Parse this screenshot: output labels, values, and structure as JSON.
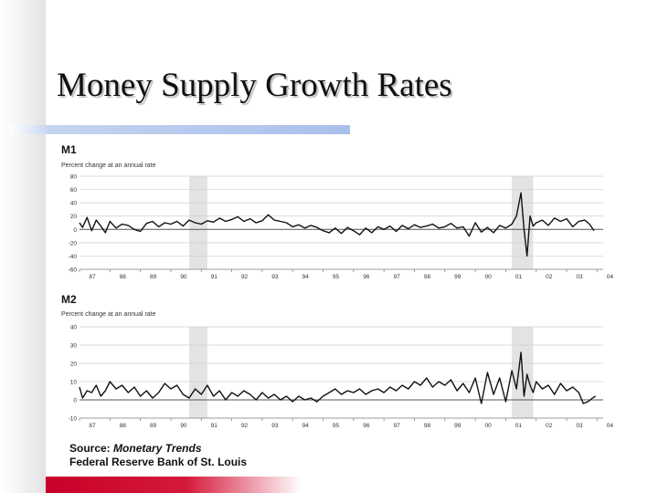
{
  "slide": {
    "title": "Money Supply Growth Rates",
    "source_label": "Source:",
    "source_publication": "Monetary Trends",
    "source_org": "Federal Reserve Bank of St. Louis"
  },
  "colors": {
    "bottom_bar": "#c8002a",
    "title_underline": "#a9bfec",
    "shading": "#e3e3e3",
    "line": "#111111"
  },
  "chart_data": [
    {
      "type": "line",
      "title": "M1",
      "subtitle": "Percent change at an annual rate",
      "ylim": [
        -60,
        80
      ],
      "y_ticks": [
        80,
        60,
        40,
        20,
        0,
        -20,
        -40,
        -60
      ],
      "x_ticks": [
        "87",
        "88",
        "89",
        "90",
        "91",
        "92",
        "93",
        "94",
        "95",
        "96",
        "97",
        "98",
        "99",
        "00",
        "01",
        "02",
        "03",
        "04"
      ],
      "xlim": [
        1987.0,
        2004.2
      ],
      "shaded_periods": [
        [
          1990.6,
          1991.2
        ],
        [
          2001.2,
          2001.9
        ]
      ],
      "series": [
        {
          "x": [
            1987.0,
            1987.1,
            1987.25,
            1987.4,
            1987.55,
            1987.7,
            1987.85,
            1988.0,
            1988.2,
            1988.4,
            1988.6,
            1988.8,
            1989.0,
            1989.2,
            1989.4,
            1989.6,
            1989.8,
            1990.0,
            1990.2,
            1990.4,
            1990.6,
            1990.8,
            1991.0,
            1991.2,
            1991.4,
            1991.6,
            1991.8,
            1992.0,
            1992.2,
            1992.4,
            1992.6,
            1992.8,
            1993.0,
            1993.2,
            1993.4,
            1993.6,
            1993.8,
            1994.0,
            1994.2,
            1994.4,
            1994.6,
            1994.8,
            1995.0,
            1995.2,
            1995.4,
            1995.6,
            1995.8,
            1996.0,
            1996.2,
            1996.4,
            1996.6,
            1996.8,
            1997.0,
            1997.2,
            1997.4,
            1997.6,
            1997.8,
            1998.0,
            1998.2,
            1998.4,
            1998.6,
            1998.8,
            1999.0,
            1999.2,
            1999.4,
            1999.6,
            1999.8,
            2000.0,
            2000.2,
            2000.4,
            2000.6,
            2000.8,
            2001.0,
            2001.2,
            2001.35,
            2001.5,
            2001.6,
            2001.7,
            2001.8,
            2001.9,
            2002.0,
            2002.2,
            2002.4,
            2002.6,
            2002.8,
            2003.0,
            2003.2,
            2003.4,
            2003.6,
            2003.75,
            2003.9
          ],
          "y": [
            10,
            3,
            18,
            -2,
            14,
            5,
            -5,
            12,
            2,
            8,
            6,
            0,
            -3,
            9,
            12,
            4,
            10,
            8,
            12,
            5,
            14,
            10,
            8,
            13,
            11,
            17,
            12,
            15,
            19,
            12,
            16,
            10,
            13,
            22,
            14,
            12,
            10,
            4,
            7,
            2,
            6,
            3,
            -2,
            -5,
            2,
            -6,
            3,
            -2,
            -8,
            2,
            -5,
            4,
            0,
            5,
            -3,
            6,
            1,
            7,
            3,
            5,
            8,
            2,
            4,
            9,
            2,
            4,
            -10,
            10,
            -4,
            3,
            -5,
            6,
            2,
            8,
            20,
            55,
            0,
            -40,
            20,
            5,
            10,
            14,
            6,
            17,
            12,
            16,
            4,
            12,
            14,
            8,
            -2
          ]
        }
      ]
    },
    {
      "type": "line",
      "title": "M2",
      "subtitle": "Percent change at an annual rate",
      "ylim": [
        -10,
        40
      ],
      "y_ticks": [
        40,
        30,
        20,
        10,
        0,
        -10
      ],
      "x_ticks": [
        "87",
        "88",
        "89",
        "90",
        "91",
        "92",
        "93",
        "94",
        "95",
        "96",
        "97",
        "98",
        "99",
        "00",
        "01",
        "02",
        "03",
        "04"
      ],
      "xlim": [
        1987.0,
        2004.2
      ],
      "shaded_periods": [
        [
          1990.6,
          1991.2
        ],
        [
          2001.2,
          2001.9
        ]
      ],
      "series": [
        {
          "x": [
            1987.0,
            1987.1,
            1987.25,
            1987.4,
            1987.55,
            1987.7,
            1987.85,
            1988.0,
            1988.2,
            1988.4,
            1988.6,
            1988.8,
            1989.0,
            1989.2,
            1989.4,
            1989.6,
            1989.8,
            1990.0,
            1990.2,
            1990.4,
            1990.6,
            1990.8,
            1991.0,
            1991.2,
            1991.4,
            1991.6,
            1991.8,
            1992.0,
            1992.2,
            1992.4,
            1992.6,
            1992.8,
            1993.0,
            1993.2,
            1993.4,
            1993.6,
            1993.8,
            1994.0,
            1994.2,
            1994.4,
            1994.6,
            1994.8,
            1995.0,
            1995.2,
            1995.4,
            1995.6,
            1995.8,
            1996.0,
            1996.2,
            1996.4,
            1996.6,
            1996.8,
            1997.0,
            1997.2,
            1997.4,
            1997.6,
            1997.8,
            1998.0,
            1998.2,
            1998.4,
            1998.6,
            1998.8,
            1999.0,
            1999.2,
            1999.4,
            1999.6,
            1999.8,
            2000.0,
            2000.2,
            2000.4,
            2000.6,
            2000.8,
            2001.0,
            2001.2,
            2001.35,
            2001.5,
            2001.6,
            2001.7,
            2001.8,
            2001.9,
            2002.0,
            2002.2,
            2002.4,
            2002.6,
            2002.8,
            2003.0,
            2003.2,
            2003.4,
            2003.55,
            2003.7,
            2003.85,
            2003.95
          ],
          "y": [
            7,
            1,
            5,
            4,
            8,
            2,
            5,
            10,
            6,
            8,
            4,
            7,
            2,
            5,
            1,
            4,
            9,
            6,
            8,
            3,
            1,
            6,
            3,
            8,
            2,
            5,
            0,
            4,
            2,
            5,
            3,
            0,
            4,
            1,
            3,
            0,
            2,
            -1,
            2,
            0,
            1,
            -1,
            2,
            4,
            6,
            3,
            5,
            4,
            6,
            3,
            5,
            6,
            4,
            7,
            5,
            8,
            6,
            10,
            8,
            12,
            7,
            10,
            8,
            11,
            5,
            9,
            4,
            12,
            -2,
            15,
            3,
            12,
            -1,
            16,
            6,
            26,
            2,
            14,
            8,
            4,
            10,
            6,
            8,
            3,
            9,
            5,
            7,
            4,
            -2,
            -1,
            1,
            2
          ]
        }
      ]
    }
  ]
}
